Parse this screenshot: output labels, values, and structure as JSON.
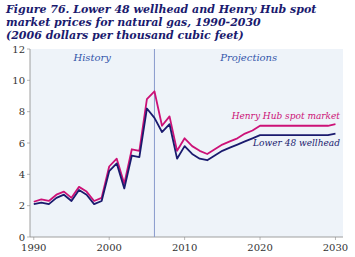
{
  "chart_data": {
    "type": "line",
    "title": "Figure 76. Lower 48 wellhead and Henry Hub spot market prices for natural gas, 1990-2030",
    "subtitle": "(2006 dollars per thousand cubic feet)",
    "annotations": [
      "History",
      "Projections"
    ],
    "divider_x": 2006,
    "x": [
      1990,
      1991,
      1992,
      1993,
      1994,
      1995,
      1996,
      1997,
      1998,
      1999,
      2000,
      2001,
      2002,
      2003,
      2004,
      2005,
      2006,
      2007,
      2008,
      2009,
      2010,
      2011,
      2012,
      2013,
      2014,
      2015,
      2016,
      2017,
      2018,
      2019,
      2020,
      2021,
      2022,
      2023,
      2024,
      2025,
      2026,
      2027,
      2028,
      2029,
      2030
    ],
    "series": [
      {
        "name": "Henry Hub spot market",
        "color": "#cc1177",
        "values": [
          2.25,
          2.4,
          2.3,
          2.7,
          2.9,
          2.5,
          3.2,
          2.9,
          2.3,
          2.5,
          4.5,
          5.0,
          3.4,
          5.6,
          5.5,
          8.8,
          9.3,
          7.1,
          7.7,
          5.5,
          6.3,
          5.8,
          5.5,
          5.3,
          5.6,
          5.9,
          6.1,
          6.3,
          6.6,
          6.8,
          7.1,
          7.1,
          7.1,
          7.1,
          7.1,
          7.1,
          7.1,
          7.1,
          7.1,
          7.1,
          7.2
        ]
      },
      {
        "name": "Lower 48 wellhead",
        "color": "#1a1a6e",
        "values": [
          2.1,
          2.2,
          2.1,
          2.5,
          2.7,
          2.3,
          3.0,
          2.7,
          2.1,
          2.3,
          4.2,
          4.7,
          3.1,
          5.2,
          5.1,
          8.2,
          7.6,
          6.7,
          7.2,
          5.0,
          5.8,
          5.3,
          5.0,
          4.9,
          5.2,
          5.5,
          5.7,
          5.9,
          6.1,
          6.3,
          6.5,
          6.5,
          6.5,
          6.5,
          6.5,
          6.5,
          6.5,
          6.5,
          6.5,
          6.5,
          6.6
        ]
      }
    ],
    "xlim": [
      1989.5,
      2031
    ],
    "xticks": [
      1990,
      2000,
      2010,
      2020,
      2030
    ],
    "ylim": [
      0,
      12
    ],
    "yticks": [
      0,
      2,
      4,
      6,
      8,
      10,
      12
    ],
    "grid": false
  }
}
